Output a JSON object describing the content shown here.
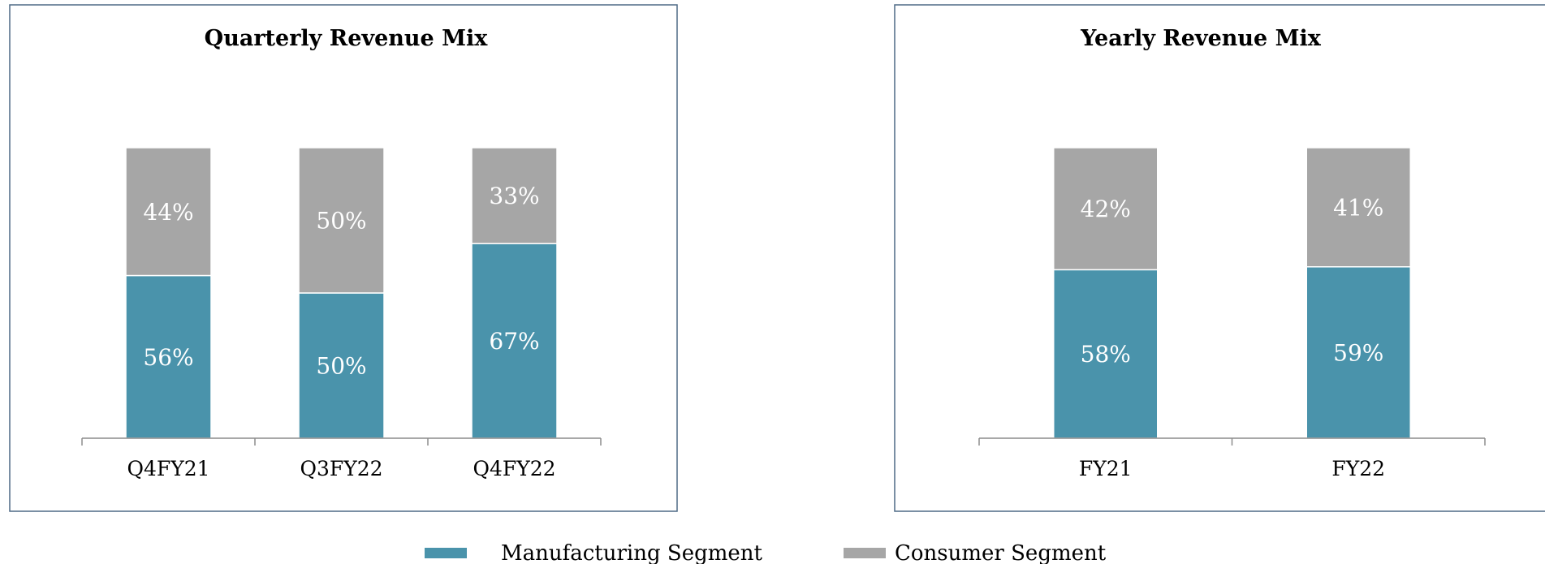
{
  "colors": {
    "manufacturing": "#4a93ab",
    "consumer": "#a6a6a6",
    "frame": "#4f6a86",
    "axis": "#8c8c8c"
  },
  "legend": [
    {
      "name": "Manufacturing Segment",
      "color": "#4a93ab"
    },
    {
      "name": "Consumer Segment",
      "color": "#a6a6a6"
    }
  ],
  "chart_data": [
    {
      "type": "bar",
      "stacked": true,
      "title": "Quarterly Revenue Mix",
      "categories": [
        "Q4FY21",
        "Q3FY22",
        "Q4FY22"
      ],
      "series": [
        {
          "name": "Manufacturing Segment",
          "values": [
            56,
            50,
            67
          ],
          "labels": [
            "56%",
            "50%",
            "67%"
          ]
        },
        {
          "name": "Consumer Segment",
          "values": [
            44,
            50,
            33
          ],
          "labels": [
            "44%",
            "50%",
            "33%"
          ]
        }
      ],
      "ylim": [
        0,
        100
      ],
      "grid": false,
      "legend": "bottom"
    },
    {
      "type": "bar",
      "stacked": true,
      "title": "Yearly Revenue Mix",
      "categories": [
        "FY21",
        "FY22"
      ],
      "series": [
        {
          "name": "Manufacturing Segment",
          "values": [
            58,
            59
          ],
          "labels": [
            "58%",
            "59%"
          ]
        },
        {
          "name": "Consumer Segment",
          "values": [
            42,
            41
          ],
          "labels": [
            "42%",
            "41%"
          ]
        }
      ],
      "ylim": [
        0,
        100
      ],
      "grid": false,
      "legend": "bottom"
    }
  ]
}
